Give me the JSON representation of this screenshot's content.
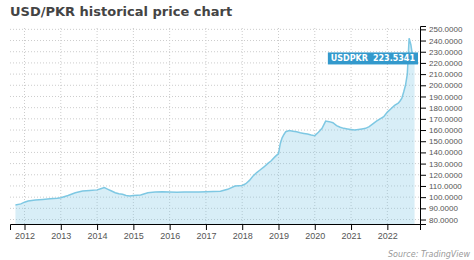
{
  "chart_data": {
    "type": "area",
    "title": "USD/PKR historical price chart",
    "source": "Source: TradingView",
    "color": "#7ec8e3",
    "grid": true,
    "xlim": [
      2011.6,
      2022.9
    ],
    "ylim": [
      76,
      253
    ],
    "xticks": [
      2012,
      2013,
      2014,
      2015,
      2016,
      2017,
      2018,
      2019,
      2020,
      2021,
      2022
    ],
    "yticks": [
      {
        "value": 80,
        "label": "80.0000"
      },
      {
        "value": 90,
        "label": "90.0000"
      },
      {
        "value": 100,
        "label": "100.0000"
      },
      {
        "value": 110,
        "label": "110.0000"
      },
      {
        "value": 120,
        "label": "120.0000"
      },
      {
        "value": 130,
        "label": "130.0000"
      },
      {
        "value": 140,
        "label": "140.0000"
      },
      {
        "value": 150,
        "label": "150.0000"
      },
      {
        "value": 160,
        "label": "160.0000"
      },
      {
        "value": 170,
        "label": "170.0000"
      },
      {
        "value": 180,
        "label": "180.0000"
      },
      {
        "value": 190,
        "label": "190.0000"
      },
      {
        "value": 200,
        "label": "200.0000"
      },
      {
        "value": 210,
        "label": "210.0000"
      },
      {
        "value": 220,
        "label": "220.0000"
      },
      {
        "value": 230,
        "label": "230.0000"
      },
      {
        "value": 240,
        "label": "240.0000"
      },
      {
        "value": 250,
        "label": "250.0000"
      }
    ],
    "annotation": {
      "text": "USDPKR",
      "label": "223.5341",
      "y": 224.0,
      "color": "#3399cc"
    },
    "x": [
      2011.75,
      2011.9,
      2012.0,
      2012.1,
      2012.2,
      2012.3,
      2012.5,
      2012.7,
      2012.9,
      2013.0,
      2013.2,
      2013.4,
      2013.6,
      2013.8,
      2014.0,
      2014.1,
      2014.2,
      2014.3,
      2014.4,
      2014.5,
      2014.6,
      2014.7,
      2014.8,
      2014.9,
      2015.0,
      2015.2,
      2015.4,
      2015.6,
      2015.8,
      2016.0,
      2016.2,
      2016.4,
      2016.6,
      2016.8,
      2017.0,
      2017.2,
      2017.4,
      2017.6,
      2017.8,
      2018.0,
      2018.1,
      2018.2,
      2018.3,
      2018.4,
      2018.5,
      2018.6,
      2018.7,
      2018.8,
      2018.9,
      2019.0,
      2019.05,
      2019.1,
      2019.15,
      2019.2,
      2019.3,
      2019.4,
      2019.5,
      2019.6,
      2019.7,
      2019.8,
      2019.9,
      2020.0,
      2020.1,
      2020.2,
      2020.3,
      2020.4,
      2020.5,
      2020.6,
      2020.7,
      2020.8,
      2020.9,
      2021.0,
      2021.1,
      2021.2,
      2021.3,
      2021.4,
      2021.5,
      2021.6,
      2021.7,
      2021.8,
      2021.9,
      2022.0,
      2022.1,
      2022.2,
      2022.3,
      2022.35,
      2022.4,
      2022.45,
      2022.5,
      2022.55,
      2022.6,
      2022.65,
      2022.7,
      2022.75
    ],
    "values": [
      93.0,
      94.0,
      95.5,
      96.5,
      97.0,
      97.5,
      98.0,
      98.5,
      99.0,
      99.5,
      101.5,
      104.0,
      105.5,
      106.0,
      106.5,
      107.5,
      108.5,
      107.0,
      105.5,
      104.0,
      103.0,
      102.5,
      101.5,
      101.0,
      101.5,
      102.0,
      104.0,
      104.5,
      104.8,
      104.5,
      104.3,
      104.5,
      104.5,
      104.7,
      104.8,
      105.0,
      105.2,
      107.0,
      110.0,
      110.5,
      112.0,
      115.0,
      119.0,
      122.0,
      124.5,
      127.0,
      130.0,
      132.5,
      136.0,
      139.0,
      148.0,
      153.0,
      156.0,
      158.5,
      159.5,
      159.0,
      158.5,
      157.5,
      157.0,
      156.5,
      155.5,
      155.0,
      158.0,
      161.5,
      168.0,
      167.5,
      166.5,
      164.0,
      162.5,
      161.5,
      161.0,
      160.5,
      160.0,
      160.5,
      161.0,
      161.5,
      163.0,
      165.5,
      168.0,
      170.0,
      172.0,
      176.0,
      179.0,
      182.0,
      184.0,
      186.0,
      188.5,
      194.0,
      200.0,
      210.0,
      242.0,
      236.0,
      225.0,
      223.5
    ]
  }
}
